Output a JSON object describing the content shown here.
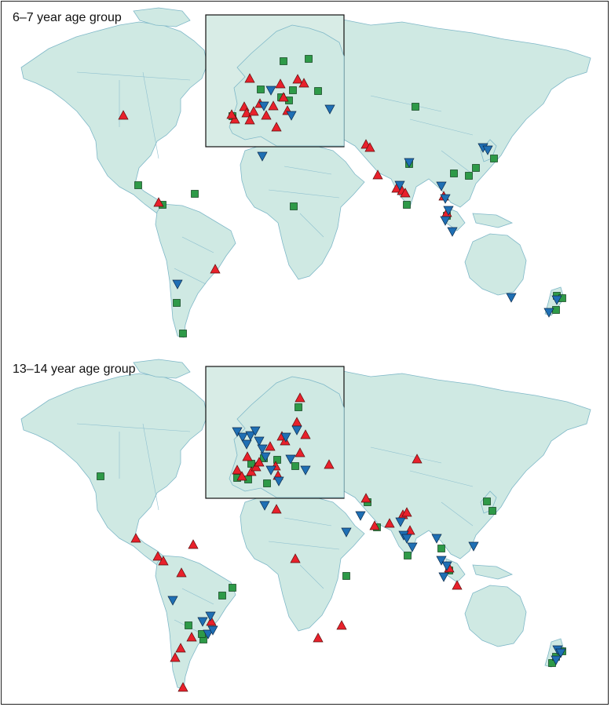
{
  "figure": {
    "panels": [
      {
        "title": "6–7 year age group",
        "markers": {
          "up": [
            [
              155,
              145
            ],
            [
              200,
              256
            ],
            [
              272,
              341
            ],
            [
              464,
              182
            ],
            [
              469,
              186
            ],
            [
              479,
              221
            ],
            [
              503,
              238
            ],
            [
              510,
              241
            ],
            [
              514,
              244
            ],
            [
              563,
              248
            ],
            [
              567,
              269
            ],
            [
              297,
              150
            ],
            [
              293,
              144
            ],
            [
              316,
              98
            ],
            [
              309,
              134
            ],
            [
              312,
              142
            ],
            [
              316,
              151
            ],
            [
              321,
              140
            ],
            [
              329,
              130
            ],
            [
              337,
              145
            ],
            [
              346,
              133
            ],
            [
              350,
              160
            ],
            [
              355,
              105
            ],
            [
              359,
              122
            ],
            [
              364,
              139
            ],
            [
              377,
              99
            ],
            [
              385,
              104
            ]
          ],
          "down": [
            [
              224,
              360
            ],
            [
              332,
              197
            ],
            [
              334,
              133
            ],
            [
              343,
              113
            ],
            [
              369,
              145
            ],
            [
              418,
              137
            ],
            [
              613,
              186
            ],
            [
              619,
              189
            ],
            [
              507,
              234
            ],
            [
              519,
              205
            ],
            [
              560,
              235
            ],
            [
              565,
              251
            ],
            [
              569,
              266
            ],
            [
              565,
              279
            ],
            [
              574,
              293
            ],
            [
              649,
              377
            ],
            [
              697,
              396
            ],
            [
              707,
              380
            ]
          ],
          "sq": [
            [
              174,
              234
            ],
            [
              205,
              259
            ],
            [
              246,
              245
            ],
            [
              223,
              384
            ],
            [
              231,
              423
            ],
            [
              294,
              146
            ],
            [
              330,
              112
            ],
            [
              356,
              122
            ],
            [
              366,
              126
            ],
            [
              371,
              113
            ],
            [
              359,
              76
            ],
            [
              391,
              73
            ],
            [
              403,
              114
            ],
            [
              527,
              134
            ],
            [
              519,
              207
            ],
            [
              516,
              259
            ],
            [
              576,
              219
            ],
            [
              595,
              222
            ],
            [
              604,
              212
            ],
            [
              627,
              200
            ],
            [
              567,
              273
            ],
            [
              707,
              375
            ],
            [
              714,
              378
            ],
            [
              706,
              393
            ],
            [
              372,
              261
            ]
          ]
        }
      },
      {
        "title": "13–14 year age group",
        "markers": {
          "up": [
            [
              171,
              684
            ],
            [
              199,
              707
            ],
            [
              206,
              713
            ],
            [
              244,
              692
            ],
            [
              229,
              728
            ],
            [
              242,
              810
            ],
            [
              228,
              824
            ],
            [
              267,
              790
            ],
            [
              221,
              836
            ],
            [
              231,
              874
            ],
            [
              350,
              647
            ],
            [
              374,
              710
            ],
            [
              403,
              811
            ],
            [
              433,
              795
            ],
            [
              464,
              633
            ],
            [
              475,
              668
            ],
            [
              494,
              665
            ],
            [
              511,
              654
            ],
            [
              516,
              651
            ],
            [
              520,
              674
            ],
            [
              529,
              583
            ],
            [
              580,
              744
            ],
            [
              570,
              722
            ],
            [
              300,
              597
            ],
            [
              306,
              605
            ],
            [
              313,
              580
            ],
            [
              318,
              599
            ],
            [
              324,
              593
            ],
            [
              328,
              587
            ],
            [
              342,
              567
            ],
            [
              352,
              604
            ],
            [
              349,
              592
            ],
            [
              357,
              554
            ],
            [
              361,
              560
            ],
            [
              376,
              536
            ],
            [
              380,
              575
            ],
            [
              380,
              505
            ],
            [
              387,
              552
            ],
            [
              417,
              590
            ]
          ],
          "down": [
            [
              218,
              763
            ],
            [
              256,
              790
            ],
            [
              263,
              806
            ],
            [
              266,
              783
            ],
            [
              269,
              801
            ],
            [
              335,
              642
            ],
            [
              439,
              676
            ],
            [
              457,
              655
            ],
            [
              508,
              663
            ],
            [
              512,
              680
            ],
            [
              516,
              684
            ],
            [
              523,
              695
            ],
            [
              554,
              684
            ],
            [
              560,
              712
            ],
            [
              567,
              719
            ],
            [
              563,
              733
            ],
            [
              601,
              694
            ],
            [
              708,
              826
            ],
            [
              712,
              830
            ],
            [
              706,
              839
            ],
            [
              300,
              548
            ],
            [
              307,
              555
            ],
            [
              312,
              564
            ],
            [
              317,
              553
            ],
            [
              323,
              547
            ],
            [
              328,
              560
            ],
            [
              332,
              570
            ],
            [
              336,
              580
            ],
            [
              343,
              597
            ],
            [
              353,
              611
            ],
            [
              362,
              555
            ],
            [
              368,
              583
            ],
            [
              376,
              546
            ],
            [
              387,
              597
            ]
          ],
          "sq": [
            [
              126,
              605
            ],
            [
              294,
              747
            ],
            [
              281,
              757
            ],
            [
              238,
              795
            ],
            [
              257,
              813
            ],
            [
              255,
              806
            ],
            [
              466,
              638
            ],
            [
              478,
              670
            ],
            [
              517,
              706
            ],
            [
              439,
              732
            ],
            [
              560,
              697
            ],
            [
              570,
              725
            ],
            [
              618,
              637
            ],
            [
              625,
              649
            ],
            [
              701,
              843
            ],
            [
              706,
              835
            ],
            [
              714,
              828
            ],
            [
              300,
              607
            ],
            [
              314,
              609
            ],
            [
              318,
              589
            ],
            [
              334,
              582
            ],
            [
              338,
              614
            ],
            [
              351,
              584
            ],
            [
              378,
              517
            ],
            [
              374,
              592
            ]
          ]
        }
      }
    ]
  }
}
